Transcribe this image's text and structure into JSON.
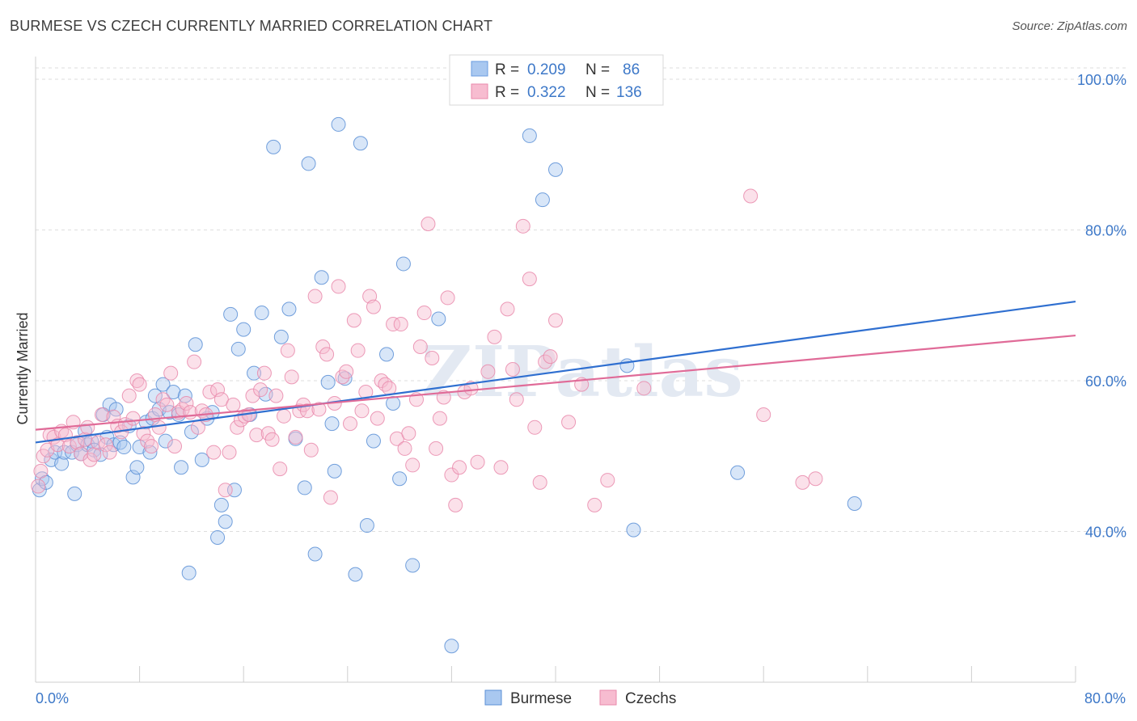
{
  "title": "BURMESE VS CZECH CURRENTLY MARRIED CORRELATION CHART",
  "source": "Source: ZipAtlas.com",
  "watermark": "ZIPatlas",
  "legend_top": [
    {
      "r_label": "R =",
      "r_value": "0.209",
      "n_label": "N =",
      "n_value": "86",
      "color": "#a9c8f0",
      "stroke": "#6a9ce0"
    },
    {
      "r_label": "R =",
      "r_value": "0.322",
      "n_label": "N =",
      "n_value": "136",
      "color": "#f7bcd0",
      "stroke": "#e98aab"
    }
  ],
  "chart_data": {
    "type": "scatter",
    "xlabel": "",
    "ylabel": "Currently Married",
    "xlim": [
      0,
      80
    ],
    "ylim": [
      20,
      103
    ],
    "y_ticks": [
      {
        "value": 40,
        "label": "40.0%"
      },
      {
        "value": 60,
        "label": "60.0%"
      },
      {
        "value": 80,
        "label": "80.0%"
      },
      {
        "value": 100,
        "label": "100.0%"
      }
    ],
    "x_tick_labels": {
      "min": "0.0%",
      "max": "80.0%"
    },
    "x_ticks": [
      0,
      8,
      16,
      24,
      32,
      40,
      48,
      56,
      64,
      72,
      80
    ],
    "grid": "horizontal dashed",
    "series": [
      {
        "name": "Burmese",
        "color": "#a9c8f0",
        "stroke": "#5b8fd6",
        "line_color": "#2f6fd0",
        "trend": [
          [
            0,
            51.8
          ],
          [
            80,
            70.5
          ]
        ],
        "points": [
          [
            0.3,
            45.5
          ],
          [
            0.5,
            47
          ],
          [
            0.8,
            46.5
          ],
          [
            1.2,
            49.5
          ],
          [
            1.5,
            50.5
          ],
          [
            2,
            49
          ],
          [
            2.2,
            50.5
          ],
          [
            2.8,
            50.5
          ],
          [
            3,
            45
          ],
          [
            3.2,
            51.5
          ],
          [
            3.5,
            50.3
          ],
          [
            3.8,
            53.3
          ],
          [
            4,
            51.5
          ],
          [
            4.3,
            52
          ],
          [
            4.5,
            50.8
          ],
          [
            5,
            50.2
          ],
          [
            5.2,
            55.5
          ],
          [
            5.5,
            52.5
          ],
          [
            5.7,
            56.8
          ],
          [
            6,
            51.5
          ],
          [
            6.2,
            56.2
          ],
          [
            6.5,
            51.8
          ],
          [
            6.8,
            51.2
          ],
          [
            7.2,
            54
          ],
          [
            7.5,
            47.2
          ],
          [
            7.8,
            48.5
          ],
          [
            8,
            51.2
          ],
          [
            8.5,
            54.5
          ],
          [
            8.8,
            50.5
          ],
          [
            9,
            55
          ],
          [
            9.2,
            58
          ],
          [
            9.5,
            56.2
          ],
          [
            9.8,
            59.5
          ],
          [
            10,
            52
          ],
          [
            10.3,
            55.8
          ],
          [
            10.6,
            58.5
          ],
          [
            11,
            55.5
          ],
          [
            11.2,
            48.5
          ],
          [
            11.5,
            58
          ],
          [
            11.8,
            34.5
          ],
          [
            12,
            53.2
          ],
          [
            12.3,
            64.8
          ],
          [
            12.8,
            49.5
          ],
          [
            13.2,
            55
          ],
          [
            13.6,
            55.8
          ],
          [
            14,
            39.2
          ],
          [
            14.3,
            43.5
          ],
          [
            14.6,
            41.3
          ],
          [
            15,
            68.8
          ],
          [
            15.3,
            45.5
          ],
          [
            15.6,
            64.2
          ],
          [
            16,
            66.8
          ],
          [
            16.5,
            55.5
          ],
          [
            16.8,
            61
          ],
          [
            17.4,
            69
          ],
          [
            17.7,
            58.2
          ],
          [
            18.3,
            91
          ],
          [
            18.9,
            65.8
          ],
          [
            19.5,
            69.5
          ],
          [
            20,
            52.3
          ],
          [
            20.7,
            45.8
          ],
          [
            21,
            88.8
          ],
          [
            21.5,
            37
          ],
          [
            22,
            73.7
          ],
          [
            22.5,
            59.8
          ],
          [
            22.8,
            54.3
          ],
          [
            23,
            48
          ],
          [
            23.3,
            94
          ],
          [
            23.8,
            60.3
          ],
          [
            24.6,
            34.3
          ],
          [
            25,
            91.5
          ],
          [
            25.5,
            40.8
          ],
          [
            26,
            52
          ],
          [
            27,
            63.5
          ],
          [
            27.5,
            57
          ],
          [
            28,
            47
          ],
          [
            28.3,
            75.5
          ],
          [
            29,
            35.5
          ],
          [
            31,
            68.2
          ],
          [
            32,
            24.8
          ],
          [
            38,
            92.5
          ],
          [
            39,
            84
          ],
          [
            40,
            88
          ],
          [
            45.5,
            62
          ],
          [
            46,
            40.2
          ],
          [
            54,
            47.8
          ],
          [
            63,
            43.7
          ]
        ]
      },
      {
        "name": "Czechs",
        "color": "#f7bcd0",
        "stroke": "#e98aab",
        "line_color": "#e06b98",
        "trend": [
          [
            0,
            53.5
          ],
          [
            80,
            66
          ]
        ],
        "points": [
          [
            0.2,
            46
          ],
          [
            0.4,
            48
          ],
          [
            0.6,
            50
          ],
          [
            0.9,
            50.8
          ],
          [
            1.1,
            52.8
          ],
          [
            1.4,
            52.5
          ],
          [
            1.7,
            51.5
          ],
          [
            2,
            53.3
          ],
          [
            2.3,
            52.8
          ],
          [
            2.6,
            51.3
          ],
          [
            2.9,
            54.5
          ],
          [
            3.2,
            51.8
          ],
          [
            3.5,
            50.3
          ],
          [
            3.8,
            52.2
          ],
          [
            4,
            53.8
          ],
          [
            4.2,
            49.5
          ],
          [
            4.5,
            50.2
          ],
          [
            4.8,
            51.8
          ],
          [
            5.1,
            55.5
          ],
          [
            5.4,
            51.5
          ],
          [
            5.7,
            50.5
          ],
          [
            6,
            55.2
          ],
          [
            6.3,
            54
          ],
          [
            6.6,
            53.2
          ],
          [
            6.9,
            54.2
          ],
          [
            7.2,
            58
          ],
          [
            7.5,
            55
          ],
          [
            7.8,
            60
          ],
          [
            8,
            59.5
          ],
          [
            8.3,
            53
          ],
          [
            8.6,
            52
          ],
          [
            8.9,
            51.3
          ],
          [
            9.2,
            55.5
          ],
          [
            9.5,
            53.8
          ],
          [
            9.8,
            57.5
          ],
          [
            10.1,
            56.8
          ],
          [
            10.4,
            61
          ],
          [
            10.7,
            51.3
          ],
          [
            11,
            55.8
          ],
          [
            11.3,
            56.2
          ],
          [
            11.6,
            57
          ],
          [
            11.9,
            55.8
          ],
          [
            12.2,
            62.5
          ],
          [
            12.5,
            53.8
          ],
          [
            12.8,
            56
          ],
          [
            13.1,
            55.5
          ],
          [
            13.4,
            58.5
          ],
          [
            13.7,
            50.5
          ],
          [
            14,
            58.8
          ],
          [
            14.3,
            57.5
          ],
          [
            14.6,
            45.5
          ],
          [
            14.9,
            50.5
          ],
          [
            15.2,
            56.8
          ],
          [
            15.5,
            53.8
          ],
          [
            15.8,
            54.8
          ],
          [
            16.1,
            55.3
          ],
          [
            16.4,
            55.5
          ],
          [
            16.7,
            58
          ],
          [
            17,
            52.8
          ],
          [
            17.3,
            58.8
          ],
          [
            17.6,
            61
          ],
          [
            17.9,
            53
          ],
          [
            18.2,
            52.2
          ],
          [
            18.5,
            58
          ],
          [
            18.8,
            48.3
          ],
          [
            19.1,
            55.3
          ],
          [
            19.4,
            64
          ],
          [
            19.7,
            60.5
          ],
          [
            20,
            52.5
          ],
          [
            20.3,
            56
          ],
          [
            20.6,
            56.8
          ],
          [
            20.9,
            56
          ],
          [
            21.2,
            50.8
          ],
          [
            21.5,
            71.2
          ],
          [
            21.8,
            56.2
          ],
          [
            22.1,
            64.5
          ],
          [
            22.4,
            63.5
          ],
          [
            22.7,
            44.5
          ],
          [
            23,
            57
          ],
          [
            23.3,
            72.5
          ],
          [
            23.6,
            60.5
          ],
          [
            23.9,
            61.2
          ],
          [
            24.2,
            54.3
          ],
          [
            24.5,
            68
          ],
          [
            24.8,
            64
          ],
          [
            25.1,
            56
          ],
          [
            25.4,
            58.5
          ],
          [
            25.7,
            71.2
          ],
          [
            26,
            69.8
          ],
          [
            26.3,
            55
          ],
          [
            26.6,
            60
          ],
          [
            26.9,
            59.5
          ],
          [
            27.2,
            59
          ],
          [
            27.5,
            67.5
          ],
          [
            27.8,
            52.3
          ],
          [
            28.1,
            67.5
          ],
          [
            28.4,
            51
          ],
          [
            28.7,
            53
          ],
          [
            29,
            48.8
          ],
          [
            29.3,
            57.5
          ],
          [
            29.6,
            64.5
          ],
          [
            29.9,
            69
          ],
          [
            30.2,
            80.8
          ],
          [
            30.5,
            63
          ],
          [
            30.8,
            51
          ],
          [
            31.1,
            55
          ],
          [
            31.4,
            57.8
          ],
          [
            31.7,
            71
          ],
          [
            32,
            47.5
          ],
          [
            32.3,
            43.5
          ],
          [
            32.6,
            48.5
          ],
          [
            33,
            58.5
          ],
          [
            33.5,
            59
          ],
          [
            34,
            49.2
          ],
          [
            34.8,
            61.2
          ],
          [
            35.3,
            65.8
          ],
          [
            35.8,
            48.5
          ],
          [
            36.3,
            69.5
          ],
          [
            36.7,
            61.5
          ],
          [
            37,
            57.5
          ],
          [
            37.5,
            80.5
          ],
          [
            38,
            73.5
          ],
          [
            38.4,
            53.8
          ],
          [
            38.8,
            46.5
          ],
          [
            39.2,
            62.5
          ],
          [
            39.6,
            63.2
          ],
          [
            40,
            68
          ],
          [
            41,
            54.5
          ],
          [
            42,
            59.5
          ],
          [
            43,
            43.5
          ],
          [
            44,
            46.8
          ],
          [
            46.8,
            59
          ],
          [
            55,
            84.5
          ],
          [
            56,
            55.5
          ],
          [
            59,
            46.5
          ],
          [
            60,
            47
          ]
        ]
      }
    ]
  },
  "bottom_legend": [
    {
      "label": "Burmese"
    },
    {
      "label": "Czechs"
    }
  ]
}
